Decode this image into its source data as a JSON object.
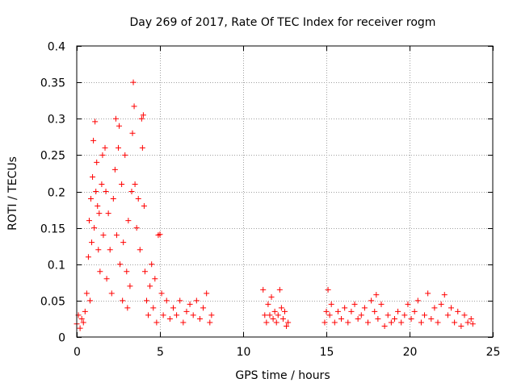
{
  "chart_data": {
    "type": "scatter",
    "title": "Day 269 of 2017, Rate Of TEC Index for receiver rogm",
    "xlabel": "GPS time / hours",
    "ylabel": "ROTI / TECUs",
    "xlim": [
      0,
      25
    ],
    "ylim": [
      0,
      0.4
    ],
    "grid": true,
    "marker": "+",
    "color": "#ff0000",
    "x_ticks": [
      0,
      5,
      10,
      15,
      20,
      25
    ],
    "x_tick_labels": [
      "0",
      "5",
      "10",
      "15",
      "20",
      "25"
    ],
    "y_ticks": [
      0,
      0.05,
      0.1,
      0.15,
      0.2,
      0.25,
      0.3,
      0.35,
      0.4
    ],
    "y_tick_labels": [
      "0",
      "0.05",
      "0.1",
      "0.15",
      "0.2",
      "0.25",
      "0.3",
      "0.35",
      "0.4"
    ],
    "series": [
      {
        "name": "ROTI",
        "points": [
          [
            0.0,
            0.018
          ],
          [
            0.1,
            0.03
          ],
          [
            0.2,
            0.012
          ],
          [
            0.3,
            0.025
          ],
          [
            0.4,
            0.02
          ],
          [
            0.5,
            0.035
          ],
          [
            0.6,
            0.06
          ],
          [
            0.7,
            0.11
          ],
          [
            0.75,
            0.16
          ],
          [
            0.8,
            0.05
          ],
          [
            0.85,
            0.19
          ],
          [
            0.9,
            0.13
          ],
          [
            0.95,
            0.22
          ],
          [
            1.0,
            0.27
          ],
          [
            1.05,
            0.15
          ],
          [
            1.1,
            0.296
          ],
          [
            1.15,
            0.2
          ],
          [
            1.2,
            0.24
          ],
          [
            1.25,
            0.18
          ],
          [
            1.3,
            0.12
          ],
          [
            1.35,
            0.17
          ],
          [
            1.4,
            0.09
          ],
          [
            1.5,
            0.21
          ],
          [
            1.55,
            0.25
          ],
          [
            1.6,
            0.14
          ],
          [
            1.7,
            0.26
          ],
          [
            1.75,
            0.2
          ],
          [
            1.8,
            0.08
          ],
          [
            1.9,
            0.17
          ],
          [
            2.0,
            0.12
          ],
          [
            2.1,
            0.06
          ],
          [
            2.2,
            0.19
          ],
          [
            2.3,
            0.23
          ],
          [
            2.35,
            0.3
          ],
          [
            2.4,
            0.14
          ],
          [
            2.5,
            0.26
          ],
          [
            2.55,
            0.29
          ],
          [
            2.6,
            0.1
          ],
          [
            2.7,
            0.21
          ],
          [
            2.75,
            0.05
          ],
          [
            2.8,
            0.13
          ],
          [
            2.9,
            0.25
          ],
          [
            3.0,
            0.09
          ],
          [
            3.05,
            0.04
          ],
          [
            3.1,
            0.16
          ],
          [
            3.2,
            0.07
          ],
          [
            3.3,
            0.2
          ],
          [
            3.35,
            0.28
          ],
          [
            3.4,
            0.35
          ],
          [
            3.45,
            0.317
          ],
          [
            3.5,
            0.21
          ],
          [
            3.6,
            0.15
          ],
          [
            3.7,
            0.19
          ],
          [
            3.8,
            0.12
          ],
          [
            3.9,
            0.3
          ],
          [
            3.95,
            0.26
          ],
          [
            4.0,
            0.305
          ],
          [
            4.05,
            0.18
          ],
          [
            4.1,
            0.09
          ],
          [
            4.2,
            0.05
          ],
          [
            4.3,
            0.03
          ],
          [
            4.4,
            0.07
          ],
          [
            4.5,
            0.1
          ],
          [
            4.6,
            0.04
          ],
          [
            4.7,
            0.08
          ],
          [
            4.8,
            0.02
          ],
          [
            4.9,
            0.14
          ],
          [
            5.0,
            0.141
          ],
          [
            5.1,
            0.06
          ],
          [
            5.2,
            0.03
          ],
          [
            5.4,
            0.05
          ],
          [
            5.6,
            0.025
          ],
          [
            5.8,
            0.04
          ],
          [
            6.0,
            0.03
          ],
          [
            6.2,
            0.05
          ],
          [
            6.4,
            0.02
          ],
          [
            6.6,
            0.035
          ],
          [
            6.8,
            0.045
          ],
          [
            7.0,
            0.03
          ],
          [
            7.2,
            0.05
          ],
          [
            7.4,
            0.025
          ],
          [
            7.6,
            0.04
          ],
          [
            7.8,
            0.06
          ],
          [
            8.0,
            0.02
          ],
          [
            8.1,
            0.03
          ],
          [
            11.2,
            0.065
          ],
          [
            11.3,
            0.03
          ],
          [
            11.4,
            0.02
          ],
          [
            11.5,
            0.045
          ],
          [
            11.6,
            0.03
          ],
          [
            11.7,
            0.055
          ],
          [
            11.8,
            0.025
          ],
          [
            11.9,
            0.035
          ],
          [
            12.0,
            0.02
          ],
          [
            12.1,
            0.03
          ],
          [
            12.2,
            0.065
          ],
          [
            12.3,
            0.04
          ],
          [
            12.4,
            0.025
          ],
          [
            12.5,
            0.035
          ],
          [
            12.6,
            0.015
          ],
          [
            12.7,
            0.02
          ],
          [
            14.9,
            0.02
          ],
          [
            15.0,
            0.035
          ],
          [
            15.1,
            0.065
          ],
          [
            15.2,
            0.03
          ],
          [
            15.3,
            0.045
          ],
          [
            15.5,
            0.02
          ],
          [
            15.7,
            0.035
          ],
          [
            15.9,
            0.025
          ],
          [
            16.1,
            0.04
          ],
          [
            16.3,
            0.02
          ],
          [
            16.5,
            0.035
          ],
          [
            16.7,
            0.045
          ],
          [
            16.9,
            0.025
          ],
          [
            17.1,
            0.03
          ],
          [
            17.3,
            0.04
          ],
          [
            17.5,
            0.02
          ],
          [
            17.7,
            0.05
          ],
          [
            17.9,
            0.035
          ],
          [
            18.0,
            0.058
          ],
          [
            18.1,
            0.025
          ],
          [
            18.3,
            0.045
          ],
          [
            18.5,
            0.015
          ],
          [
            18.7,
            0.03
          ],
          [
            18.9,
            0.02
          ],
          [
            19.1,
            0.025
          ],
          [
            19.3,
            0.035
          ],
          [
            19.5,
            0.02
          ],
          [
            19.7,
            0.03
          ],
          [
            19.9,
            0.045
          ],
          [
            20.1,
            0.025
          ],
          [
            20.3,
            0.035
          ],
          [
            20.5,
            0.05
          ],
          [
            20.7,
            0.02
          ],
          [
            20.9,
            0.03
          ],
          [
            21.1,
            0.06
          ],
          [
            21.3,
            0.025
          ],
          [
            21.5,
            0.04
          ],
          [
            21.7,
            0.02
          ],
          [
            21.9,
            0.045
          ],
          [
            22.1,
            0.058
          ],
          [
            22.3,
            0.03
          ],
          [
            22.5,
            0.04
          ],
          [
            22.7,
            0.02
          ],
          [
            22.9,
            0.035
          ],
          [
            23.1,
            0.015
          ],
          [
            23.3,
            0.03
          ],
          [
            23.5,
            0.02
          ],
          [
            23.7,
            0.025
          ],
          [
            23.8,
            0.018
          ]
        ]
      }
    ]
  }
}
